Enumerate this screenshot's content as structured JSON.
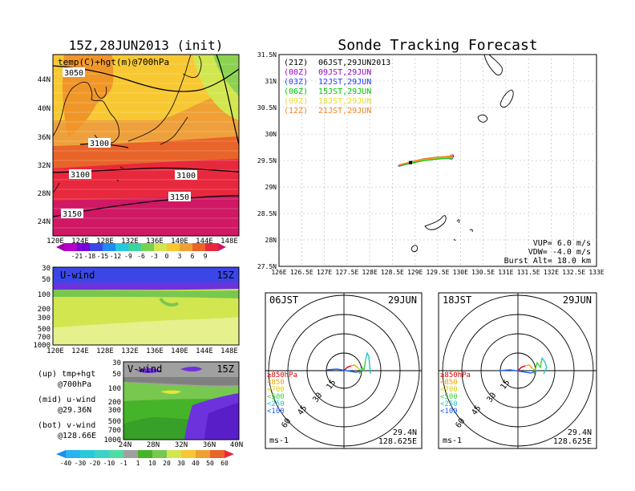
{
  "left_map": {
    "title": "15Z,28JUN2013 (init)",
    "label": "temp(C)+hgt(m)@700hPa",
    "lat_ticks": [
      "44N",
      "40N",
      "36N",
      "32N",
      "28N",
      "24N"
    ],
    "lon_ticks": [
      "120E",
      "124E",
      "128E",
      "132E",
      "136E",
      "140E",
      "144E",
      "148E"
    ],
    "contour_labels": [
      "3050",
      "3100",
      "3100",
      "3100",
      "3150",
      "3150"
    ],
    "colorbar_ticks": [
      "-21",
      "-18",
      "-15",
      "-12",
      "-9",
      "-6",
      "-3",
      "0",
      "3",
      "6",
      "9"
    ]
  },
  "uwind": {
    "label": "U-wind",
    "time": "15Z",
    "p_ticks": [
      "30",
      "50",
      "100",
      "200",
      "300",
      "500",
      "700",
      "1000"
    ],
    "lon_ticks": [
      "120E",
      "124E",
      "128E",
      "132E",
      "136E",
      "140E",
      "144E",
      "148E"
    ]
  },
  "vwind": {
    "label": "V-wind",
    "time": "15Z",
    "p_ticks": [
      "30",
      "50",
      "100",
      "200",
      "300",
      "500",
      "700",
      "1000"
    ],
    "lat_ticks": [
      "24N",
      "28N",
      "32N",
      "36N",
      "40N"
    ]
  },
  "notes": {
    "up_1": "(up) tmp+hgt",
    "up_2": "@700hPa",
    "mid_1": "(mid) u-wind",
    "mid_2": "@29.36N",
    "bot_1": "(bot) v-wind",
    "bot_2": "@128.66E"
  },
  "bottom_colorbar_ticks": [
    "-40",
    "-30",
    "-20",
    "-10",
    "-1",
    "1",
    "10",
    "20",
    "30",
    "40",
    "50",
    "60"
  ],
  "track": {
    "title": "Sonde Tracking Forecast",
    "lat_ticks": [
      "31.5N",
      "31N",
      "30.5N",
      "30N",
      "29.5N",
      "29N",
      "28.5N",
      "28N",
      "27.5N"
    ],
    "lon_ticks": [
      "126E",
      "126.5E",
      "127E",
      "127.5E",
      "128E",
      "128.5E",
      "129E",
      "129.5E",
      "130E",
      "130.5E",
      "131E",
      "131.5E",
      "132E",
      "132.5E",
      "133E"
    ],
    "legend": [
      {
        "run": "(21Z)",
        "time": "06JST,29JUN2013",
        "color": "#000000"
      },
      {
        "run": "(00Z)",
        "time": "09JST,29JUN",
        "color": "#a000c8"
      },
      {
        "run": "(03Z)",
        "time": "12JST,29JUN",
        "color": "#1e3cff"
      },
      {
        "run": "(06Z)",
        "time": "15JST,29JUN",
        "color": "#00c800"
      },
      {
        "run": "(09Z)",
        "time": "18JST,29JUN",
        "color": "#e6dc32"
      },
      {
        "run": "(12Z)",
        "time": "21JST,29JUN",
        "color": "#f08228"
      }
    ],
    "vup": "VUP=  6.0  m/s",
    "vdw": "VDW= -4.0  m/s",
    "burst": "Burst Alt= 18.0  km"
  },
  "chart_data": [
    {
      "type": "line",
      "title": "Sonde Tracking Forecast",
      "xlim": [
        126,
        133
      ],
      "ylim": [
        27.5,
        31.5
      ],
      "series": [
        {
          "name": "(21Z) 06JST,29JUN2013",
          "x": [
            128.63,
            128.9,
            129.2,
            129.5,
            129.8
          ],
          "y": [
            29.4,
            29.46,
            29.52,
            29.55,
            29.56
          ]
        },
        {
          "name": "(00Z) 09JST,29JUN",
          "x": [
            128.63,
            128.9,
            129.2,
            129.5,
            129.82
          ],
          "y": [
            29.4,
            29.47,
            29.53,
            29.56,
            29.58
          ]
        },
        {
          "name": "(03Z) 12JST,29JUN",
          "x": [
            128.63,
            128.9,
            129.2,
            129.5,
            129.8
          ],
          "y": [
            29.39,
            29.45,
            29.51,
            29.54,
            29.55
          ]
        },
        {
          "name": "(06Z) 15JST,29JUN",
          "x": [
            128.63,
            128.9,
            129.2,
            129.5,
            129.78
          ],
          "y": [
            29.4,
            29.45,
            29.5,
            29.53,
            29.55
          ]
        },
        {
          "name": "(09Z) 18JST,29JUN",
          "x": [
            128.63,
            128.9,
            129.2,
            129.5,
            129.8
          ],
          "y": [
            29.41,
            29.47,
            29.52,
            29.55,
            29.57
          ]
        },
        {
          "name": "(12Z) 21JST,29JUN",
          "x": [
            128.63,
            128.9,
            129.2,
            129.5,
            129.8
          ],
          "y": [
            29.41,
            29.47,
            29.53,
            29.56,
            29.58
          ]
        }
      ]
    }
  ],
  "hodo_left": {
    "time": "06JST",
    "date": "29JUN",
    "rings": [
      "15",
      "30",
      "45",
      "60"
    ],
    "levels": [
      {
        "label": "≥850hPa",
        "color": "#e00000"
      },
      {
        "label": "<850",
        "color": "#f0a000"
      },
      {
        "label": "<700",
        "color": "#d8d000"
      },
      {
        "label": "<500",
        "color": "#40d040"
      },
      {
        "label": "<250",
        "color": "#20c8c8"
      },
      {
        "label": "<100",
        "color": "#2060ff"
      }
    ],
    "unit": "ms-1",
    "lat": "29.4N",
    "lon": "128.625E"
  },
  "hodo_right": {
    "time": "18JST",
    "date": "29JUN",
    "rings": [
      "15",
      "30",
      "45",
      "60"
    ],
    "unit": "ms-1",
    "lat": "29.4N",
    "lon": "128.625E"
  },
  "colors": {
    "map_orange": "#f0a032",
    "map_red": "#e8283c",
    "map_magenta": "#d01864",
    "map_dark_orange": "#e86428",
    "yellow_green": "#d2e650",
    "green": "#78c850",
    "blue": "#3c46e6",
    "purple": "#6e32dc"
  }
}
